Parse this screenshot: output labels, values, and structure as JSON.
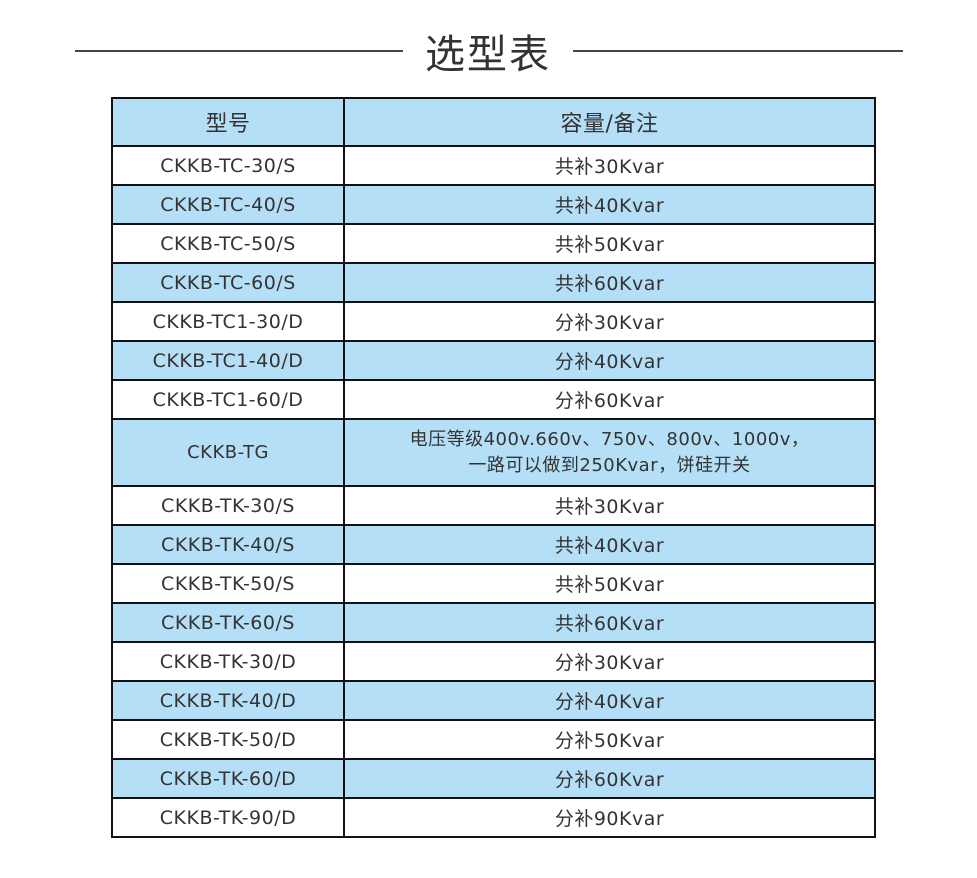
{
  "title": "选型表",
  "table": {
    "headers": [
      "型号",
      "容量/备注"
    ],
    "rows": [
      {
        "model": "CKKB-TC-30/S",
        "note": "共补30Kvar"
      },
      {
        "model": "CKKB-TC-40/S",
        "note": "共补40Kvar"
      },
      {
        "model": "CKKB-TC-50/S",
        "note": "共补50Kvar"
      },
      {
        "model": "CKKB-TC-60/S",
        "note": "共补60Kvar"
      },
      {
        "model": "CKKB-TC1-30/D",
        "note": "分补30Kvar"
      },
      {
        "model": "CKKB-TC1-40/D",
        "note": "分补40Kvar"
      },
      {
        "model": "CKKB-TC1-60/D",
        "note": "分补60Kvar"
      },
      {
        "model": "CKKB-TG",
        "note": "电压等级400v.660v、750v、800v、1000v，",
        "note2": "一路可以做到250Kvar，饼硅开关"
      },
      {
        "model": "CKKB-TK-30/S",
        "note": "共补30Kvar"
      },
      {
        "model": "CKKB-TK-40/S",
        "note": "共补40Kvar"
      },
      {
        "model": "CKKB-TK-50/S",
        "note": "共补50Kvar"
      },
      {
        "model": "CKKB-TK-60/S",
        "note": "共补60Kvar"
      },
      {
        "model": "CKKB-TK-30/D",
        "note": "分补30Kvar"
      },
      {
        "model": "CKKB-TK-40/D",
        "note": "分补40Kvar"
      },
      {
        "model": "CKKB-TK-50/D",
        "note": "分补50Kvar"
      },
      {
        "model": "CKKB-TK-60/D",
        "note": "分补60Kvar"
      },
      {
        "model": "CKKB-TK-90/D",
        "note": "分补90Kvar"
      }
    ]
  },
  "colors": {
    "header_bg": "#b5dff7",
    "alt_row_bg": "#b5dff7",
    "border": "#111111"
  }
}
